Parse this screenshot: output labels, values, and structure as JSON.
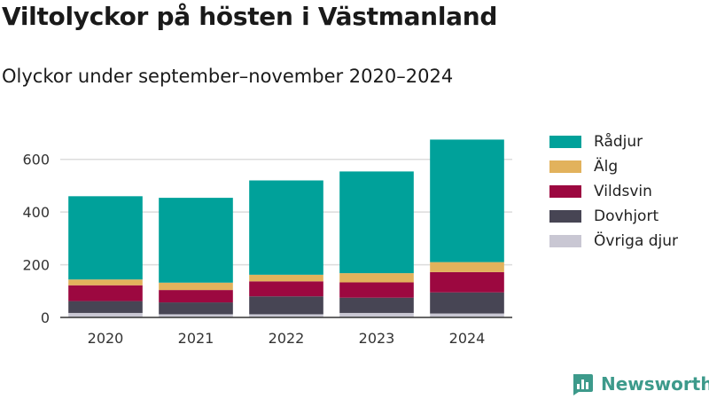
{
  "chart_data": {
    "type": "bar",
    "stacked": true,
    "title": "Viltolyckor på hösten i Västmanland",
    "subtitle": "Olyckor under september–november 2020–2024",
    "categories": [
      "2020",
      "2021",
      "2022",
      "2023",
      "2024"
    ],
    "series": [
      {
        "name": "Övriga djur",
        "color": "#c9c7d3",
        "values": [
          17,
          12,
          12,
          17,
          15
        ]
      },
      {
        "name": "Dovhjort",
        "color": "#474554",
        "values": [
          45,
          45,
          68,
          58,
          80
        ]
      },
      {
        "name": "Vildsvin",
        "color": "#9c0840",
        "values": [
          60,
          47,
          57,
          58,
          77
        ]
      },
      {
        "name": "Älg",
        "color": "#e2b25c",
        "values": [
          22,
          28,
          25,
          35,
          38
        ]
      },
      {
        "name": "Rådjur",
        "color": "#00a19a",
        "values": [
          316,
          322,
          358,
          386,
          465
        ]
      }
    ],
    "ylim": [
      0,
      700
    ],
    "yticks": [
      0,
      200,
      400,
      600
    ],
    "grid": true,
    "legend": "right"
  },
  "brand": {
    "name": "Newsworthy",
    "icon": "newsworthy-logo-icon",
    "color": "#3d9a8b"
  }
}
